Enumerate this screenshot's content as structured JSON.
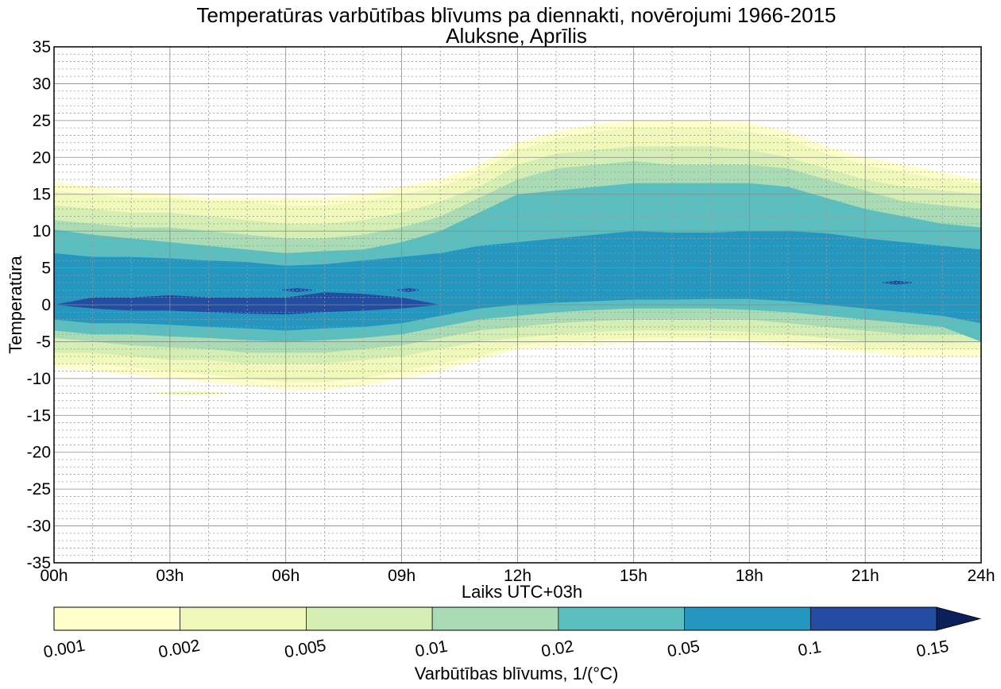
{
  "chart_data": {
    "type": "contourf",
    "title": "Temperatūras varbūtības blīvums pa diennakti, novērojumi 1966-2015",
    "subtitle": "Aluksne, Aprīlis",
    "xlabel": "Laiks UTC+03h",
    "ylabel": "Temperatūra",
    "xlim": [
      0,
      24
    ],
    "ylim": [
      -35,
      35
    ],
    "x_ticks": [
      0,
      3,
      6,
      9,
      12,
      15,
      18,
      21,
      24
    ],
    "x_tick_labels": [
      "00h",
      "03h",
      "06h",
      "09h",
      "12h",
      "15h",
      "18h",
      "21h",
      "24h"
    ],
    "y_ticks": [
      -35,
      -30,
      -25,
      -20,
      -15,
      -10,
      -5,
      0,
      5,
      10,
      15,
      20,
      25,
      30,
      35
    ],
    "y_tick_labels": [
      "-35",
      "-30",
      "-25",
      "-20",
      "-15",
      "-10",
      "-5",
      "0",
      "5",
      "10",
      "15",
      "20",
      "25",
      "30",
      "35"
    ],
    "grid": "major solid, minor dotted",
    "colorbar": {
      "label": "Varbūtības blīvums, 1/(°C)",
      "levels": [
        0.001,
        0.002,
        0.005,
        0.01,
        0.02,
        0.05,
        0.1,
        0.15
      ],
      "level_labels": [
        "0.001",
        "0.002",
        "0.005",
        "0.01",
        "0.02",
        "0.05",
        "0.1",
        "0.15"
      ],
      "colors": [
        "#ffffcc",
        "#f0f9b9",
        "#d5eeb3",
        "#a9dcb5",
        "#5bbfc0",
        "#2497c1",
        "#234da0",
        "#0b1f5b"
      ],
      "extend": "max",
      "placement": "bottom"
    },
    "hours": [
      0,
      1,
      2,
      3,
      4,
      5,
      6,
      7,
      8,
      9,
      10,
      11,
      12,
      13,
      14,
      15,
      16,
      17,
      18,
      19,
      20,
      21,
      22,
      23,
      24
    ],
    "bands": [
      {
        "level": 0.001,
        "upper": [
          16.7,
          16,
          15.5,
          15,
          14.5,
          14.5,
          14.5,
          14.5,
          15,
          16,
          17,
          19,
          22,
          23.5,
          24.5,
          25,
          25,
          25,
          24.7,
          23.5,
          21.5,
          20,
          19,
          18,
          17
        ],
        "lower": [
          -8.5,
          -9,
          -9.5,
          -10,
          -10.5,
          -11,
          -11.5,
          -11.5,
          -11,
          -10,
          -9,
          -7.5,
          -6,
          -5.7,
          -5.5,
          -5.2,
          -5,
          -5,
          -5.2,
          -5.7,
          -6,
          -6.5,
          -7,
          -7,
          -7
        ]
      },
      {
        "level": 0.002,
        "upper": [
          15.5,
          15,
          14.5,
          14.5,
          14,
          14,
          13.5,
          13.5,
          14,
          15,
          16,
          18,
          21,
          22.5,
          23.5,
          24,
          24,
          24,
          23.5,
          22.5,
          20.5,
          19,
          18,
          17,
          16.5
        ],
        "lower": [
          -8,
          -8,
          -8.5,
          -9,
          -9.5,
          -10,
          -10.5,
          -10.5,
          -10,
          -9,
          -8,
          -7,
          -5.5,
          -5,
          -4.8,
          -4.5,
          -4.5,
          -4.5,
          -4.7,
          -5,
          -5.5,
          -6,
          -6,
          -6,
          -6
        ]
      },
      {
        "level": 0.005,
        "upper": [
          13.5,
          13,
          12.5,
          12.5,
          12,
          11.5,
          11,
          11,
          11.5,
          12.5,
          14,
          16,
          19,
          20.5,
          21,
          21.5,
          21.5,
          21.5,
          21,
          20,
          18.5,
          17,
          16,
          15.5,
          15
        ],
        "lower": [
          -6.5,
          -6.5,
          -7,
          -7.5,
          -7.5,
          -8,
          -8,
          -8,
          -7.5,
          -7,
          -6,
          -5,
          -4.5,
          -4,
          -3.7,
          -3.5,
          -3.5,
          -3.5,
          -3.7,
          -4,
          -4.5,
          -5,
          -5,
          -5.2,
          -5
        ]
      },
      {
        "level": 0.01,
        "upper": [
          11.5,
          11,
          10.5,
          10.5,
          10,
          9.5,
          9,
          9,
          9.5,
          10.5,
          12,
          14.5,
          17,
          18.5,
          19,
          19.5,
          19,
          19,
          19,
          18.5,
          17,
          15.5,
          14,
          13.5,
          13
        ],
        "lower": [
          -4.5,
          -5,
          -5.5,
          -5.8,
          -6,
          -6.5,
          -6.5,
          -6.5,
          -6,
          -5.5,
          -4.5,
          -3.5,
          -3,
          -2.5,
          -2.2,
          -2,
          -2,
          -2,
          -2,
          -2.5,
          -3,
          -3.5,
          -4,
          -4,
          -4
        ]
      },
      {
        "level": 0.02,
        "upper": [
          10.2,
          9.5,
          9,
          8.5,
          8,
          7.5,
          7,
          7.3,
          7.5,
          8.5,
          10,
          12.5,
          15,
          15.5,
          16,
          16.5,
          16.5,
          16.5,
          16.5,
          16,
          14.5,
          13,
          12,
          11,
          10.5
        ],
        "lower": [
          -3.5,
          -4,
          -4,
          -4.3,
          -4.5,
          -4.8,
          -5,
          -4.8,
          -4.5,
          -4,
          -3,
          -2,
          -1.5,
          -1,
          -0.7,
          -0.5,
          -0.5,
          -0.5,
          -0.7,
          -1,
          -1.5,
          -2,
          -2.5,
          -3,
          -5
        ]
      },
      {
        "level": 0.05,
        "upper": [
          7,
          6.5,
          6.5,
          6.3,
          6,
          5.8,
          5.3,
          5.5,
          6,
          6.5,
          7,
          8,
          8.5,
          9,
          9.5,
          10,
          9.8,
          9.8,
          10,
          10,
          9.7,
          9,
          8.5,
          8,
          7.5
        ],
        "lower": [
          -2,
          -2.5,
          -2.5,
          -2.7,
          -3,
          -3.2,
          -3.5,
          -3.2,
          -3,
          -2.5,
          -1.5,
          -0.5,
          0,
          0.3,
          0.5,
          0.7,
          0.7,
          0.8,
          0.8,
          0.5,
          0,
          -0.5,
          -1,
          -1.5,
          -2.5
        ]
      },
      {
        "level": 0.1,
        "upper": [
          0,
          1,
          1,
          1.3,
          1,
          1,
          1,
          1.7,
          1.5,
          1,
          0,
          null,
          null,
          null,
          null,
          null,
          null,
          null,
          null,
          null,
          null,
          null,
          null,
          null,
          null
        ],
        "lower": [
          0,
          -0.5,
          -0.8,
          -0.8,
          -1,
          -1.2,
          -1.3,
          -1,
          -0.8,
          -0.5,
          0,
          null,
          null,
          null,
          null,
          null,
          null,
          null,
          null,
          null,
          null,
          null,
          null,
          null,
          null
        ]
      }
    ],
    "small_regions": [
      {
        "level": 0.1,
        "x": [
          5.8,
          6.3,
          6.8
        ],
        "y": 2
      },
      {
        "level": 0.1,
        "x": [
          8.8,
          9.2,
          9.5
        ],
        "y": 2
      },
      {
        "level": 0.1,
        "x": [
          21.4,
          21.8,
          22.3
        ],
        "y": 3
      },
      {
        "level": 0.002,
        "x": [
          2.2,
          3.5,
          4.9
        ],
        "y": -12
      }
    ]
  }
}
